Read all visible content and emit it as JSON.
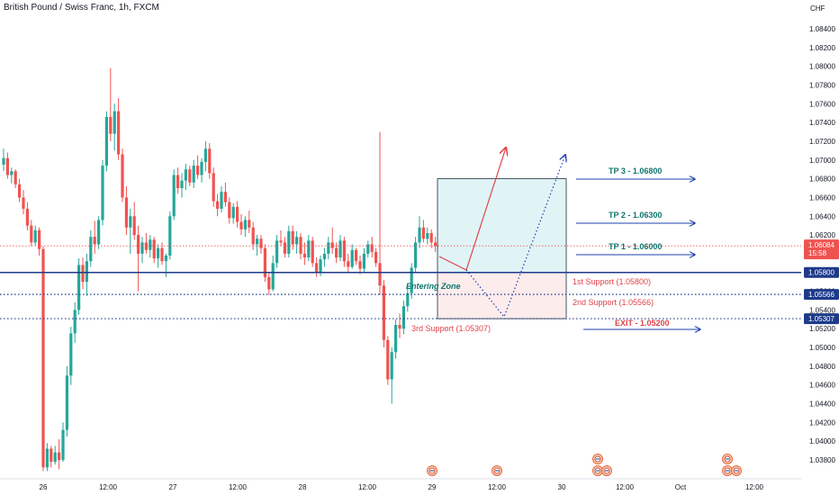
{
  "header": {
    "title": "British Pound / Swiss Franc, 1h, FXCM"
  },
  "colors": {
    "up": "#26a69a",
    "down": "#ef5350",
    "support_line": "#1e3a8a",
    "target_arrow": "#1e40af",
    "tp_text": "#0f766e",
    "support_text": "#e0424b",
    "zone_fill": "#e0f4f6",
    "entry_fill": "#fdecec",
    "current_price": "#ef5350"
  },
  "chart_data": {
    "type": "candlestick",
    "instrument": "British Pound / Swiss Franc",
    "timeframe": "1h",
    "source": "FXCM",
    "currency_label": "CHF",
    "y_range": [
      1.0368,
      1.086
    ],
    "y_ticks": [
      "1.08400",
      "1.08200",
      "1.08000",
      "1.07800",
      "1.07600",
      "1.07400",
      "1.07200",
      "1.07000",
      "1.06800",
      "1.06600",
      "1.06400",
      "1.06200",
      "1.06000",
      "1.05800",
      "1.05600",
      "1.05400",
      "1.05200",
      "1.05000",
      "1.04800",
      "1.04600",
      "1.04400",
      "1.04200",
      "1.04000",
      "1.03800"
    ],
    "x_ticks": [
      "26",
      "12:00",
      "27",
      "12:00",
      "28",
      "12:00",
      "29",
      "12:00",
      "30",
      "12:00",
      "Oct",
      "12:00"
    ],
    "current_price": {
      "value": "1.06084",
      "countdown": "15:58"
    },
    "price_labels": [
      "1.05800",
      "1.05566",
      "1.05307"
    ],
    "horizontal_levels": [
      {
        "price": 1.058,
        "style": "solid"
      },
      {
        "price": 1.05566,
        "style": "dotted"
      },
      {
        "price": 1.05307,
        "style": "dotted"
      }
    ],
    "targets": [
      {
        "label": "TP 3 - 1.06800",
        "price": 1.068
      },
      {
        "label": "TP 2 - 1.06300",
        "price": 1.063
      },
      {
        "label": "TP 1 - 1.06000",
        "price": 1.06
      }
    ],
    "exit": {
      "label": "EXIT - 1.05200",
      "price": 1.052
    },
    "supports": [
      {
        "label": "1st Support (1.05800)",
        "price": 1.058
      },
      {
        "label": "2nd Support (1.05566)",
        "price": 1.05566
      },
      {
        "label": "3rd Support (1.05307)",
        "price": 1.05307
      }
    ],
    "zones": [
      {
        "label": "",
        "from": 1.058,
        "to": 1.068
      },
      {
        "label": "Entering Zone",
        "from": 1.05307,
        "to": 1.058
      }
    ],
    "candles": [
      [
        1.0695,
        1.0712,
        1.0688,
        1.0702
      ],
      [
        1.0702,
        1.0708,
        1.068,
        1.0684
      ],
      [
        1.0684,
        1.0692,
        1.0675,
        1.0688
      ],
      [
        1.0688,
        1.069,
        1.067,
        1.0674
      ],
      [
        1.0674,
        1.068,
        1.0655,
        1.066
      ],
      [
        1.066,
        1.0668,
        1.0642,
        1.0648
      ],
      [
        1.0648,
        1.0655,
        1.0625,
        1.063
      ],
      [
        1.063,
        1.0636,
        1.0608,
        1.0612
      ],
      [
        1.0612,
        1.063,
        1.0608,
        1.0625
      ],
      [
        1.0625,
        1.0628,
        1.0598,
        1.0605
      ],
      [
        1.0605,
        1.0608,
        1.0368,
        1.0372
      ],
      [
        1.0372,
        1.0398,
        1.0368,
        1.0392
      ],
      [
        1.0392,
        1.0395,
        1.0372,
        1.0378
      ],
      [
        1.0378,
        1.0395,
        1.0375,
        1.0388
      ],
      [
        1.0388,
        1.0402,
        1.037,
        1.038
      ],
      [
        1.038,
        1.042,
        1.0378,
        1.0412
      ],
      [
        1.0412,
        1.048,
        1.0405,
        1.047
      ],
      [
        1.047,
        1.0522,
        1.046,
        1.0515
      ],
      [
        1.0515,
        1.0548,
        1.0505,
        1.054
      ],
      [
        1.054,
        1.0595,
        1.0535,
        1.0588
      ],
      [
        1.0588,
        1.0596,
        1.0562,
        1.057
      ],
      [
        1.057,
        1.06,
        1.0555,
        1.0592
      ],
      [
        1.0592,
        1.0625,
        1.0586,
        1.0618
      ],
      [
        1.0618,
        1.0635,
        1.06,
        1.061
      ],
      [
        1.061,
        1.064,
        1.0605,
        1.0636
      ],
      [
        1.0636,
        1.07,
        1.063,
        1.0694
      ],
      [
        1.0694,
        1.0752,
        1.0688,
        1.0746
      ],
      [
        1.0746,
        1.0798,
        1.072,
        1.0728
      ],
      [
        1.0728,
        1.076,
        1.071,
        1.0752
      ],
      [
        1.0752,
        1.0766,
        1.07,
        1.0706
      ],
      [
        1.0706,
        1.0712,
        1.0655,
        1.066
      ],
      [
        1.066,
        1.0672,
        1.062,
        1.0628
      ],
      [
        1.0628,
        1.0648,
        1.06,
        1.064
      ],
      [
        1.064,
        1.0655,
        1.0615,
        1.062
      ],
      [
        1.062,
        1.063,
        1.056,
        1.06
      ],
      [
        1.06,
        1.0618,
        1.059,
        1.0612
      ],
      [
        1.0612,
        1.0622,
        1.06,
        1.0604
      ],
      [
        1.0604,
        1.062,
        1.0596,
        1.0615
      ],
      [
        1.0615,
        1.0618,
        1.059,
        1.0595
      ],
      [
        1.0595,
        1.061,
        1.0585,
        1.0606
      ],
      [
        1.0606,
        1.0612,
        1.0588,
        1.0592
      ],
      [
        1.0592,
        1.06,
        1.0575,
        1.0598
      ],
      [
        1.0598,
        1.0645,
        1.0594,
        1.064
      ],
      [
        1.064,
        1.069,
        1.0636,
        1.0684
      ],
      [
        1.0684,
        1.0692,
        1.0664,
        1.067
      ],
      [
        1.067,
        1.0686,
        1.066,
        1.0678
      ],
      [
        1.0678,
        1.0696,
        1.0668,
        1.069
      ],
      [
        1.069,
        1.0694,
        1.0672,
        1.0676
      ],
      [
        1.0676,
        1.07,
        1.067,
        1.0694
      ],
      [
        1.0694,
        1.0705,
        1.068,
        1.0684
      ],
      [
        1.0684,
        1.0702,
        1.0676,
        1.0698
      ],
      [
        1.0698,
        1.072,
        1.0688,
        1.0712
      ],
      [
        1.0712,
        1.0718,
        1.068,
        1.0686
      ],
      [
        1.0686,
        1.0692,
        1.065,
        1.0656
      ],
      [
        1.0656,
        1.0664,
        1.064,
        1.0648
      ],
      [
        1.0648,
        1.0672,
        1.0644,
        1.0666
      ],
      [
        1.0666,
        1.0676,
        1.065,
        1.0655
      ],
      [
        1.0655,
        1.066,
        1.0632,
        1.0638
      ],
      [
        1.0638,
        1.0654,
        1.0632,
        1.065
      ],
      [
        1.065,
        1.0656,
        1.0628,
        1.0634
      ],
      [
        1.0634,
        1.0642,
        1.062,
        1.0626
      ],
      [
        1.0626,
        1.064,
        1.0618,
        1.0636
      ],
      [
        1.0636,
        1.0646,
        1.0622,
        1.0628
      ],
      [
        1.0628,
        1.0634,
        1.0604,
        1.061
      ],
      [
        1.061,
        1.062,
        1.0598,
        1.0616
      ],
      [
        1.0616,
        1.062,
        1.06,
        1.0606
      ],
      [
        1.0606,
        1.061,
        1.057,
        1.0575
      ],
      [
        1.0575,
        1.058,
        1.0556,
        1.0562
      ],
      [
        1.0562,
        1.0598,
        1.056,
        1.059
      ],
      [
        1.059,
        1.062,
        1.0585,
        1.0614
      ],
      [
        1.0614,
        1.0625,
        1.0608,
        1.0612
      ],
      [
        1.0612,
        1.0618,
        1.0596,
        1.06
      ],
      [
        1.06,
        1.063,
        1.0596,
        1.0624
      ],
      [
        1.0624,
        1.063,
        1.0604,
        1.061
      ],
      [
        1.061,
        1.0624,
        1.06,
        1.0618
      ],
      [
        1.0618,
        1.0622,
        1.0594,
        1.06
      ],
      [
        1.06,
        1.0612,
        1.0588,
        1.0596
      ],
      [
        1.0596,
        1.062,
        1.0592,
        1.0614
      ],
      [
        1.0614,
        1.0618,
        1.0586,
        1.059
      ],
      [
        1.059,
        1.0596,
        1.0575,
        1.058
      ],
      [
        1.058,
        1.0598,
        1.0576,
        1.0594
      ],
      [
        1.0594,
        1.0606,
        1.0586,
        1.06
      ],
      [
        1.06,
        1.0618,
        1.0594,
        1.0612
      ],
      [
        1.0612,
        1.0628,
        1.06,
        1.0606
      ],
      [
        1.0606,
        1.0612,
        1.059,
        1.0596
      ],
      [
        1.0596,
        1.062,
        1.0592,
        1.0614
      ],
      [
        1.0614,
        1.0618,
        1.0586,
        1.0592
      ],
      [
        1.0592,
        1.06,
        1.058,
        1.0586
      ],
      [
        1.0586,
        1.061,
        1.0584,
        1.0604
      ],
      [
        1.0604,
        1.0606,
        1.0588,
        1.0592
      ],
      [
        1.0592,
        1.0598,
        1.0578,
        1.0584
      ],
      [
        1.0584,
        1.0606,
        1.058,
        1.06
      ],
      [
        1.06,
        1.0614,
        1.0596,
        1.061
      ],
      [
        1.061,
        1.0618,
        1.0596,
        1.0602
      ],
      [
        1.0602,
        1.0606,
        1.0586,
        1.059
      ],
      [
        1.059,
        1.073,
        1.0556,
        1.0566
      ],
      [
        1.0566,
        1.0572,
        1.05,
        1.0508
      ],
      [
        1.0508,
        1.0512,
        1.046,
        1.0466
      ],
      [
        1.0466,
        1.05,
        1.044,
        1.0495
      ],
      [
        1.0495,
        1.053,
        1.0488,
        1.0524
      ],
      [
        1.0524,
        1.0536,
        1.051,
        1.052
      ],
      [
        1.052,
        1.055,
        1.0514,
        1.0544
      ],
      [
        1.0544,
        1.0566,
        1.0538,
        1.0558
      ],
      [
        1.0558,
        1.059,
        1.0552,
        1.0585
      ],
      [
        1.0585,
        1.0618,
        1.058,
        1.0612
      ],
      [
        1.0612,
        1.064,
        1.0606,
        1.0628
      ],
      [
        1.0628,
        1.0636,
        1.0612,
        1.0616
      ],
      [
        1.0616,
        1.0628,
        1.061,
        1.0622
      ],
      [
        1.0622,
        1.0626,
        1.0606,
        1.0612
      ],
      [
        1.0612,
        1.0618,
        1.0602,
        1.0608
      ]
    ]
  }
}
